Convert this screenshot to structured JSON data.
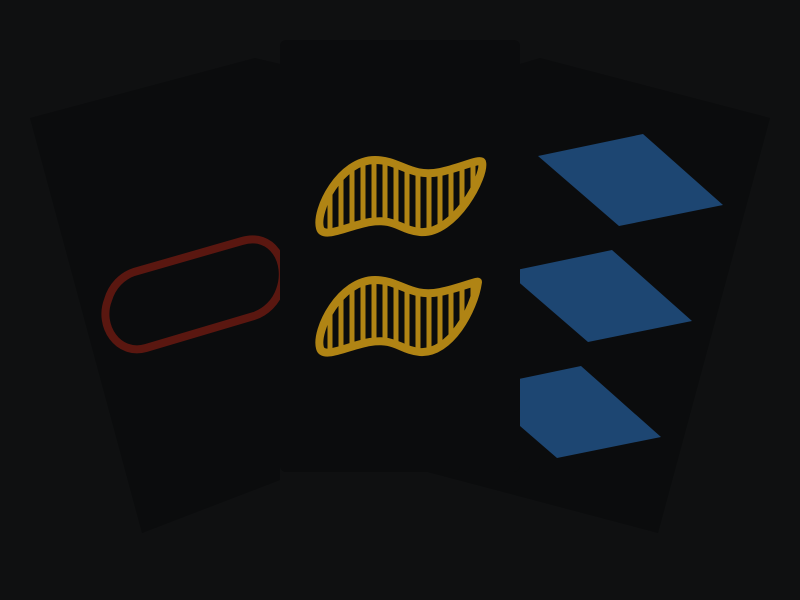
{
  "colors": {
    "background": "#0f1011",
    "card_face": "#0b0c0d",
    "card_edge": "#121314",
    "red_symbol": "#5a1710",
    "gold_symbol": "#b08414",
    "blue_symbol": "#1d4672"
  },
  "cards": [
    {
      "position": "left",
      "shape": "oval",
      "shading": "empty",
      "color": "red",
      "count": 1
    },
    {
      "position": "center",
      "shape": "squiggle",
      "shading": "striped",
      "color": "gold",
      "count": 2
    },
    {
      "position": "right",
      "shape": "diamond",
      "shading": "solid",
      "color": "blue",
      "count": 3
    }
  ]
}
